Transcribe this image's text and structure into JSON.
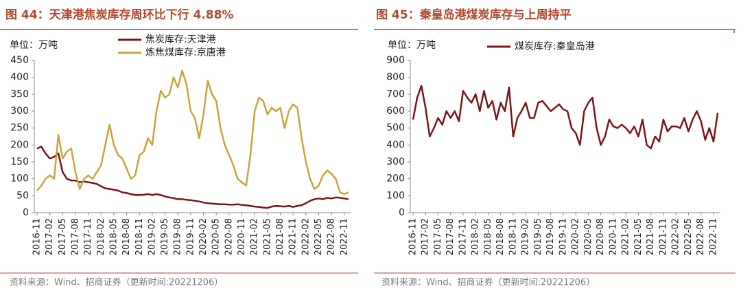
{
  "chart_data": [
    {
      "type": "line",
      "title": "图 44：天津港焦炭库存周环比下行 4.88%",
      "unit_label": "单位：万吨",
      "source": "资料来源：Wind、招商证券（更新时间:20221206）",
      "categories": [
        "2016-11",
        null,
        null,
        "2017-02",
        null,
        null,
        "2017-05",
        null,
        null,
        "2017-08",
        null,
        null,
        "2017-11",
        null,
        null,
        "2018-02",
        null,
        null,
        "2018-05",
        null,
        null,
        "2018-08",
        null,
        null,
        "2018-11",
        null,
        null,
        "2019-02",
        null,
        null,
        "2019-05",
        null,
        null,
        "2019-08",
        null,
        null,
        "2019-11",
        null,
        null,
        "2020-02",
        null,
        null,
        "2020-05",
        null,
        null,
        "2020-08",
        null,
        null,
        "2020-11",
        null,
        null,
        "2021-02",
        null,
        null,
        "2021-05",
        null,
        null,
        "2021-08",
        null,
        null,
        "2021-11",
        null,
        null,
        "2022-02",
        null,
        null,
        "2022-05",
        null,
        null,
        "2022-08",
        null,
        null,
        "2022-11",
        null
      ],
      "series": [
        {
          "name": "焦炭库存:天津港",
          "color": "#7b1416",
          "values": [
            190,
            195,
            175,
            160,
            165,
            175,
            120,
            100,
            95,
            95,
            90,
            92,
            90,
            88,
            85,
            78,
            72,
            70,
            68,
            65,
            60,
            58,
            55,
            52,
            52,
            53,
            55,
            52,
            55,
            52,
            48,
            45,
            43,
            40,
            40,
            38,
            37,
            35,
            33,
            30,
            28,
            27,
            26,
            25,
            25,
            24,
            24,
            25,
            23,
            22,
            20,
            18,
            17,
            15,
            14,
            18,
            20,
            19,
            18,
            20,
            17,
            20,
            22,
            28,
            35,
            40,
            42,
            40,
            44,
            42,
            45,
            44,
            42,
            40
          ]
        },
        {
          "name": "炼焦煤库存:京唐港",
          "color": "#c9a43c",
          "values": [
            65,
            80,
            100,
            110,
            100,
            230,
            160,
            180,
            190,
            120,
            70,
            100,
            110,
            100,
            120,
            140,
            200,
            260,
            200,
            170,
            160,
            130,
            100,
            110,
            170,
            180,
            220,
            200,
            300,
            360,
            340,
            350,
            400,
            370,
            420,
            380,
            300,
            280,
            220,
            290,
            390,
            350,
            330,
            250,
            200,
            170,
            140,
            100,
            90,
            80,
            170,
            300,
            340,
            330,
            290,
            310,
            300,
            310,
            250,
            300,
            320,
            310,
            220,
            150,
            100,
            70,
            80,
            110,
            125,
            115,
            100,
            60,
            55,
            60
          ]
        }
      ],
      "ylim": [
        0,
        450
      ],
      "yticks": [
        0,
        50,
        100,
        150,
        200,
        250,
        300,
        350,
        400,
        450
      ]
    },
    {
      "type": "line",
      "title": "图 45：秦皇岛港煤炭库存与上周持平",
      "unit_label": "单位：万吨",
      "source": "资料来源：Wind、招商证券（更新时间:20221206）",
      "categories": [
        "2016-11",
        null,
        null,
        "2017-02",
        null,
        null,
        "2017-05",
        null,
        null,
        "2017-08",
        null,
        null,
        "2017-11",
        null,
        null,
        "2018-02",
        null,
        null,
        "2018-05",
        null,
        null,
        "2018-08",
        null,
        null,
        "2018-11",
        null,
        null,
        "2019-02",
        null,
        null,
        "2019-05",
        null,
        null,
        "2019-08",
        null,
        null,
        "2019-11",
        null,
        null,
        "2020-02",
        null,
        null,
        "2020-05",
        null,
        null,
        "2020-08",
        null,
        null,
        "2020-11",
        null,
        null,
        "2021-02",
        null,
        null,
        "2021-05",
        null,
        null,
        "2021-08",
        null,
        null,
        "2021-11",
        null,
        null,
        "2022-02",
        null,
        null,
        "2022-05",
        null,
        null,
        "2022-08",
        null,
        null,
        "2022-11",
        null
      ],
      "series": [
        {
          "name": "煤炭库存:秦皇岛港",
          "color": "#7b1416",
          "values": [
            550,
            680,
            750,
            620,
            450,
            500,
            560,
            520,
            600,
            560,
            600,
            540,
            720,
            680,
            650,
            700,
            600,
            720,
            620,
            660,
            550,
            650,
            600,
            740,
            450,
            560,
            600,
            650,
            560,
            560,
            650,
            660,
            630,
            600,
            620,
            640,
            610,
            600,
            500,
            470,
            400,
            600,
            650,
            680,
            500,
            400,
            450,
            550,
            510,
            500,
            520,
            500,
            470,
            510,
            450,
            550,
            400,
            380,
            450,
            420,
            550,
            480,
            510,
            510,
            500,
            560,
            480,
            550,
            600,
            540,
            430,
            500,
            420,
            590
          ]
        }
      ],
      "ylim": [
        0,
        900
      ],
      "yticks": [
        0,
        100,
        200,
        300,
        400,
        500,
        600,
        700,
        800,
        900
      ]
    }
  ]
}
